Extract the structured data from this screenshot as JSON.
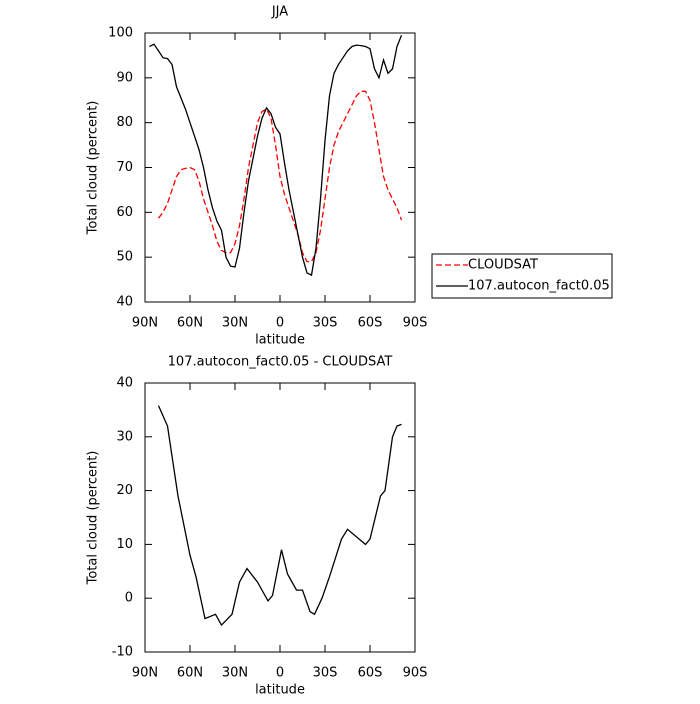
{
  "chart_data": [
    {
      "type": "line",
      "title": "JJA",
      "x_label": "latitude",
      "y_label": "Total cloud (percent)",
      "x": [
        87,
        84,
        81,
        78,
        75,
        72,
        69,
        66,
        63,
        60,
        57,
        54,
        51,
        48,
        45,
        42,
        39,
        36,
        33,
        30,
        27,
        24,
        21,
        18,
        15,
        12,
        9,
        6,
        3,
        0,
        -3,
        -6,
        -9,
        -12,
        -15,
        -18,
        -21,
        -24,
        -27,
        -30,
        -33,
        -36,
        -39,
        -42,
        -45,
        -48,
        -51,
        -54,
        -57,
        -60,
        -63,
        -66,
        -69,
        -72,
        -75,
        -78,
        -81
      ],
      "series": [
        {
          "name": "CLOUDSAT",
          "color": "#ff0000",
          "dashed": true,
          "values": [
            null,
            null,
            58.7,
            60,
            62,
            65,
            68,
            69.5,
            69.8,
            70,
            69.5,
            67,
            63,
            60,
            57,
            53.5,
            51.5,
            51,
            51,
            53,
            57,
            63,
            70,
            75,
            80,
            82.5,
            83,
            81,
            75,
            68,
            64,
            61,
            58,
            55,
            51,
            49,
            49,
            51,
            56,
            63,
            70,
            75,
            78,
            80,
            82,
            84,
            86,
            87,
            87,
            85,
            80,
            74,
            68,
            65,
            63,
            61,
            58.3
          ]
        },
        {
          "name": "107.autocon_fact0.05",
          "color": "#000000",
          "dashed": false,
          "values": [
            97,
            97.5,
            96,
            94.5,
            94.3,
            93,
            88,
            85.5,
            83,
            80,
            77,
            74,
            70,
            65,
            61,
            58,
            56,
            50,
            48,
            47.8,
            52,
            60,
            67,
            72,
            77,
            81,
            83.3,
            82,
            79,
            77.5,
            71,
            65,
            60,
            55,
            50,
            46.5,
            46,
            52,
            63,
            76,
            86,
            91,
            93,
            94.5,
            96,
            97,
            97.3,
            97.2,
            97,
            96.5,
            92,
            90,
            94,
            91,
            92,
            97,
            99.5
          ]
        }
      ],
      "xlim": [
        90,
        -90
      ],
      "xticks": [
        {
          "value": 90,
          "label": "90N"
        },
        {
          "value": 60,
          "label": "60N"
        },
        {
          "value": 30,
          "label": "30N"
        },
        0,
        {
          "value": -30,
          "label": "30S"
        },
        {
          "value": -60,
          "label": "60S"
        },
        {
          "value": -90,
          "label": "90S"
        }
      ],
      "ylim": [
        40,
        100
      ],
      "yticks": [
        40,
        50,
        60,
        70,
        80,
        90,
        100
      ],
      "legend": "right"
    },
    {
      "type": "line",
      "title": "107.autocon_fact0.05 - CLOUDSAT",
      "x_label": "latitude",
      "y_label": "Total cloud (percent)",
      "x": [
        81,
        75,
        68,
        60,
        56,
        50,
        43,
        39,
        32,
        27,
        22,
        15,
        8,
        5,
        -1,
        -5,
        -11,
        -15,
        -20,
        -23,
        -28,
        -33,
        -41,
        -45,
        -57,
        -60,
        -67,
        -70,
        -75,
        -78,
        -81
      ],
      "series": [
        {
          "color": "#000000",
          "dashed": false,
          "values": [
            35.8,
            32,
            19,
            8,
            4,
            -3.8,
            -3,
            -5,
            -3,
            3,
            5.5,
            3,
            -0.5,
            0.5,
            9,
            4.5,
            1.5,
            1.5,
            -2.5,
            -3,
            0,
            4,
            11,
            12.8,
            10,
            11,
            19,
            20,
            30,
            32,
            32.3
          ]
        }
      ],
      "xlim": [
        90,
        -90
      ],
      "xticks": [
        {
          "value": 90,
          "label": "90N"
        },
        {
          "value": 60,
          "label": "60N"
        },
        {
          "value": 30,
          "label": "30N"
        },
        0,
        {
          "value": -30,
          "label": "30S"
        },
        {
          "value": -60,
          "label": "60S"
        },
        {
          "value": -90,
          "label": "90S"
        }
      ],
      "ylim": [
        -10,
        40
      ],
      "yticks": [
        -10,
        0,
        10,
        20,
        30,
        40
      ]
    }
  ]
}
